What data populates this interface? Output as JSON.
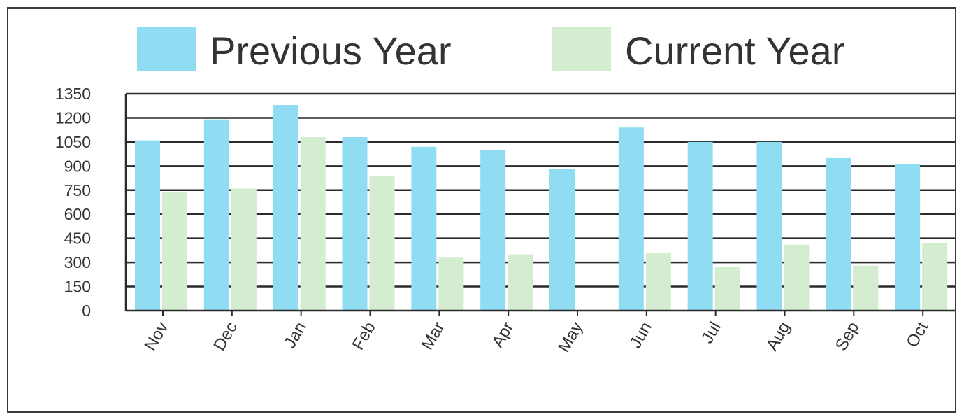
{
  "chart_data": {
    "type": "bar",
    "categories": [
      "Nov",
      "Dec",
      "Jan",
      "Feb",
      "Mar",
      "Apr",
      "May",
      "Jun",
      "Jul",
      "Aug",
      "Sep",
      "Oct"
    ],
    "series": [
      {
        "name": "Previous Year",
        "color": "#8fdcf3",
        "values": [
          1060,
          1190,
          1280,
          1080,
          1020,
          1000,
          880,
          1140,
          1050,
          1050,
          950,
          910
        ]
      },
      {
        "name": "Current Year",
        "color": "#d4ecd0",
        "values": [
          740,
          760,
          1080,
          840,
          330,
          350,
          0,
          360,
          270,
          410,
          280,
          420
        ]
      }
    ],
    "yticks": [
      0,
      150,
      300,
      450,
      600,
      750,
      900,
      1050,
      1200,
      1350
    ],
    "ylim": [
      0,
      1350
    ],
    "grid": true,
    "legend_position": "top",
    "title": "",
    "xlabel": "",
    "ylabel": ""
  }
}
